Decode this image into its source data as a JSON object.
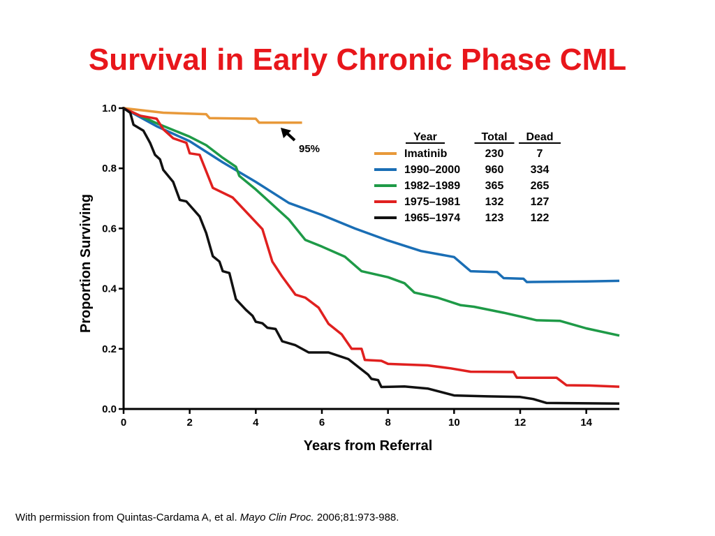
{
  "slide": {
    "title": "Survival in Early Chronic Phase CML",
    "citation_prefix": "With permission from Quintas-Cardama A, et al.",
    "citation_journal": "Mayo Clin Proc.",
    "citation_suffix": "2006;81:973-988."
  },
  "chart_data": {
    "type": "line",
    "title": "",
    "xlabel": "Years from Referral",
    "ylabel": "Proportion Surviving",
    "xlim": [
      0,
      15
    ],
    "ylim": [
      0,
      1.0
    ],
    "xticks": [
      0,
      2,
      4,
      6,
      8,
      10,
      12,
      14
    ],
    "yticks": [
      0.0,
      0.2,
      0.4,
      0.6,
      0.8,
      1.0
    ],
    "grid": false,
    "legend_position": "top-right",
    "legend_headers": [
      "Year",
      "Total",
      "Dead"
    ],
    "annotation": {
      "text": "95%",
      "points_to_series": "Imatinib",
      "x": 4.7,
      "y": 0.95
    },
    "series": [
      {
        "name": "Imatinib",
        "total": "230",
        "dead": "7",
        "color": "#e8993a",
        "points": [
          [
            0,
            1.0
          ],
          [
            1.2,
            0.985
          ],
          [
            2.5,
            0.98
          ],
          [
            2.6,
            0.967
          ],
          [
            4.0,
            0.965
          ],
          [
            4.1,
            0.952
          ],
          [
            5.4,
            0.952
          ]
        ]
      },
      {
        "name": "1990–2000",
        "total": "960",
        "dead": "334",
        "color": "#1a6eb5",
        "points": [
          [
            0,
            1.0
          ],
          [
            1,
            0.94
          ],
          [
            2,
            0.89
          ],
          [
            3,
            0.82
          ],
          [
            4,
            0.755
          ],
          [
            5,
            0.685
          ],
          [
            6,
            0.645
          ],
          [
            7,
            0.6
          ],
          [
            8,
            0.56
          ],
          [
            9,
            0.525
          ],
          [
            10,
            0.505
          ],
          [
            10.5,
            0.458
          ],
          [
            11.3,
            0.455
          ],
          [
            11.5,
            0.435
          ],
          [
            12.1,
            0.433
          ],
          [
            12.2,
            0.422
          ],
          [
            14,
            0.424
          ],
          [
            15,
            0.426
          ]
        ]
      },
      {
        "name": "1982–1989",
        "total": "365",
        "dead": "265",
        "color": "#1e9a47",
        "points": [
          [
            0,
            1.0
          ],
          [
            1,
            0.95
          ],
          [
            2,
            0.905
          ],
          [
            2.5,
            0.877
          ],
          [
            3,
            0.835
          ],
          [
            3.4,
            0.805
          ],
          [
            3.5,
            0.775
          ],
          [
            4,
            0.73
          ],
          [
            5,
            0.63
          ],
          [
            5.5,
            0.562
          ],
          [
            6,
            0.54
          ],
          [
            6.7,
            0.506
          ],
          [
            7.2,
            0.458
          ],
          [
            8,
            0.438
          ],
          [
            8.5,
            0.418
          ],
          [
            8.8,
            0.387
          ],
          [
            9.5,
            0.37
          ],
          [
            10.2,
            0.345
          ],
          [
            10.6,
            0.34
          ],
          [
            11.5,
            0.32
          ],
          [
            12.5,
            0.295
          ],
          [
            13.2,
            0.293
          ],
          [
            14,
            0.268
          ],
          [
            15,
            0.244
          ]
        ]
      },
      {
        "name": "1975–1981",
        "total": "132",
        "dead": "127",
        "color": "#e0201f",
        "points": [
          [
            0,
            1.0
          ],
          [
            0.5,
            0.975
          ],
          [
            1,
            0.965
          ],
          [
            1.2,
            0.93
          ],
          [
            1.5,
            0.9
          ],
          [
            1.9,
            0.885
          ],
          [
            2.0,
            0.85
          ],
          [
            2.3,
            0.845
          ],
          [
            2.7,
            0.735
          ],
          [
            3.3,
            0.703
          ],
          [
            4.2,
            0.598
          ],
          [
            4.5,
            0.49
          ],
          [
            4.8,
            0.44
          ],
          [
            5.2,
            0.38
          ],
          [
            5.5,
            0.37
          ],
          [
            5.9,
            0.337
          ],
          [
            6.2,
            0.283
          ],
          [
            6.6,
            0.248
          ],
          [
            6.9,
            0.2
          ],
          [
            7.2,
            0.2
          ],
          [
            7.3,
            0.163
          ],
          [
            7.8,
            0.16
          ],
          [
            8,
            0.15
          ],
          [
            9.2,
            0.145
          ],
          [
            9.9,
            0.135
          ],
          [
            10.5,
            0.124
          ],
          [
            11.8,
            0.123
          ],
          [
            11.9,
            0.104
          ],
          [
            13.1,
            0.104
          ],
          [
            13.4,
            0.079
          ],
          [
            14.1,
            0.078
          ],
          [
            15,
            0.074
          ]
        ]
      },
      {
        "name": "1965–1974",
        "total": "123",
        "dead": "122",
        "color": "#111111",
        "points": [
          [
            0,
            1.0
          ],
          [
            0.2,
            0.985
          ],
          [
            0.3,
            0.945
          ],
          [
            0.6,
            0.925
          ],
          [
            0.8,
            0.885
          ],
          [
            0.95,
            0.845
          ],
          [
            1.1,
            0.83
          ],
          [
            1.2,
            0.795
          ],
          [
            1.5,
            0.755
          ],
          [
            1.7,
            0.695
          ],
          [
            1.9,
            0.69
          ],
          [
            2.3,
            0.64
          ],
          [
            2.5,
            0.585
          ],
          [
            2.7,
            0.508
          ],
          [
            2.9,
            0.49
          ],
          [
            3.0,
            0.458
          ],
          [
            3.2,
            0.452
          ],
          [
            3.4,
            0.365
          ],
          [
            3.7,
            0.33
          ],
          [
            3.9,
            0.31
          ],
          [
            4.0,
            0.29
          ],
          [
            4.2,
            0.285
          ],
          [
            4.35,
            0.27
          ],
          [
            4.6,
            0.266
          ],
          [
            4.8,
            0.225
          ],
          [
            5.2,
            0.212
          ],
          [
            5.6,
            0.188
          ],
          [
            6.2,
            0.188
          ],
          [
            6.8,
            0.166
          ],
          [
            7.1,
            0.14
          ],
          [
            7.4,
            0.114
          ],
          [
            7.5,
            0.1
          ],
          [
            7.7,
            0.096
          ],
          [
            7.8,
            0.073
          ],
          [
            8.5,
            0.075
          ],
          [
            9.2,
            0.068
          ],
          [
            10,
            0.045
          ],
          [
            11,
            0.042
          ],
          [
            12,
            0.04
          ],
          [
            12.4,
            0.033
          ],
          [
            12.8,
            0.02
          ],
          [
            15,
            0.018
          ]
        ]
      }
    ]
  }
}
